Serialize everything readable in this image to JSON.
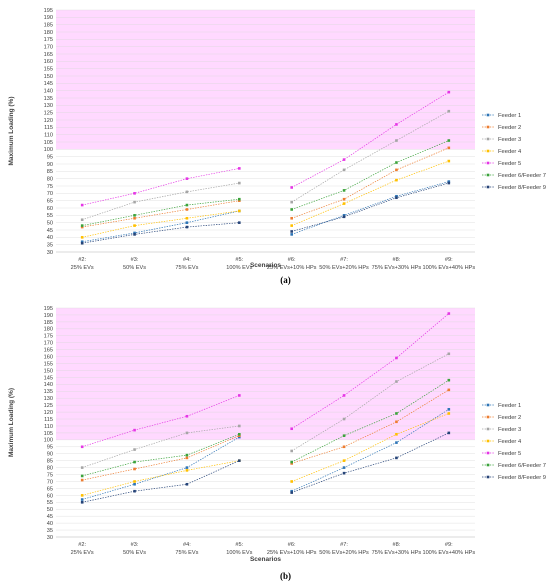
{
  "chart_data": [
    {
      "type": "line",
      "panel_label": "(a)",
      "ylabel": "Maximum Loading (%)",
      "xlabel": "Scenarios",
      "ylim": [
        30,
        195
      ],
      "ytick_step": 5,
      "highlight_band": {
        "from": 100,
        "to": 195,
        "color": "#ffd9ff"
      },
      "grid": true,
      "legend_placement": "right",
      "categories": [
        [
          "#2:",
          "25% EVs"
        ],
        [
          "#3:",
          "50% EVs"
        ],
        [
          "#4:",
          "75% EVs"
        ],
        [
          "#5:",
          "100% EVs"
        ],
        [
          "#6:",
          "25% EVs+10% HPs"
        ],
        [
          "#7:",
          "50% EVs+20% HPs"
        ],
        [
          "#8:",
          "75% EVs+30% HPs"
        ],
        [
          "#9:",
          "100% EVs+40% HPs"
        ]
      ],
      "segments": [
        [
          0,
          3
        ],
        [
          4,
          7
        ]
      ],
      "series": [
        {
          "name": "Feeder 1",
          "color": "#2e75b6",
          "values": [
            37,
            43,
            50,
            58,
            42,
            55,
            68,
            78
          ]
        },
        {
          "name": "Feeder 2",
          "color": "#ed7d31",
          "values": [
            47,
            53,
            59,
            65,
            53,
            66,
            86,
            101
          ]
        },
        {
          "name": "Feeder 3",
          "color": "#a5a5a5",
          "values": [
            52,
            64,
            71,
            77,
            64,
            86,
            106,
            126
          ]
        },
        {
          "name": "Feeder 4",
          "color": "#ffc000",
          "values": [
            40,
            48,
            53,
            58,
            48,
            63,
            79,
            92
          ]
        },
        {
          "name": "Feeder 5",
          "color": "#e536e5",
          "values": [
            62,
            70,
            80,
            87,
            74,
            93,
            117,
            139
          ]
        },
        {
          "name": "Feeder 6/Feeder 7",
          "color": "#3ba33b",
          "values": [
            48,
            55,
            62,
            66,
            59,
            72,
            91,
            106
          ]
        },
        {
          "name": "Feeder 8/Feeder 9",
          "color": "#264478",
          "values": [
            36,
            42,
            47,
            50,
            44,
            54,
            67,
            77
          ]
        }
      ]
    },
    {
      "type": "line",
      "panel_label": "(b)",
      "ylabel": "Maximum Loading (%)",
      "xlabel": "Scenarios",
      "ylim": [
        30,
        195
      ],
      "ytick_step": 5,
      "highlight_band": {
        "from": 100,
        "to": 195,
        "color": "#ffd9ff"
      },
      "grid": true,
      "legend_placement": "right",
      "categories": [
        [
          "#2:",
          "25% EVs"
        ],
        [
          "#3:",
          "50% EVs"
        ],
        [
          "#4:",
          "75% EVs"
        ],
        [
          "#5:",
          "100% EVs"
        ],
        [
          "#6:",
          "25% EVs+10% HPs"
        ],
        [
          "#7:",
          "50% EVs+20% HPs"
        ],
        [
          "#8:",
          "75% EVs+30% HPs"
        ],
        [
          "#9:",
          "100% EVs+40% HPs"
        ]
      ],
      "segments": [
        [
          0,
          3
        ],
        [
          4,
          7
        ]
      ],
      "series": [
        {
          "name": "Feeder 1",
          "color": "#2e75b6",
          "values": [
            57,
            68,
            80,
            102,
            63,
            80,
            98,
            122
          ]
        },
        {
          "name": "Feeder 2",
          "color": "#ed7d31",
          "values": [
            71,
            79,
            87,
            103,
            83,
            95,
            113,
            136
          ]
        },
        {
          "name": "Feeder 3",
          "color": "#a5a5a5",
          "values": [
            80,
            93,
            105,
            110,
            92,
            115,
            142,
            162
          ]
        },
        {
          "name": "Feeder 4",
          "color": "#ffc000",
          "values": [
            60,
            70,
            78,
            85,
            70,
            85,
            104,
            119
          ]
        },
        {
          "name": "Feeder 5",
          "color": "#e536e5",
          "values": [
            95,
            107,
            117,
            132,
            108,
            132,
            159,
            191
          ]
        },
        {
          "name": "Feeder 6/Feeder 7",
          "color": "#3ba33b",
          "values": [
            74,
            84,
            89,
            104,
            84,
            103,
            119,
            143
          ]
        },
        {
          "name": "Feeder 8/Feeder 9",
          "color": "#264478",
          "values": [
            55,
            63,
            68,
            85,
            62,
            76,
            87,
            105
          ]
        }
      ]
    }
  ]
}
